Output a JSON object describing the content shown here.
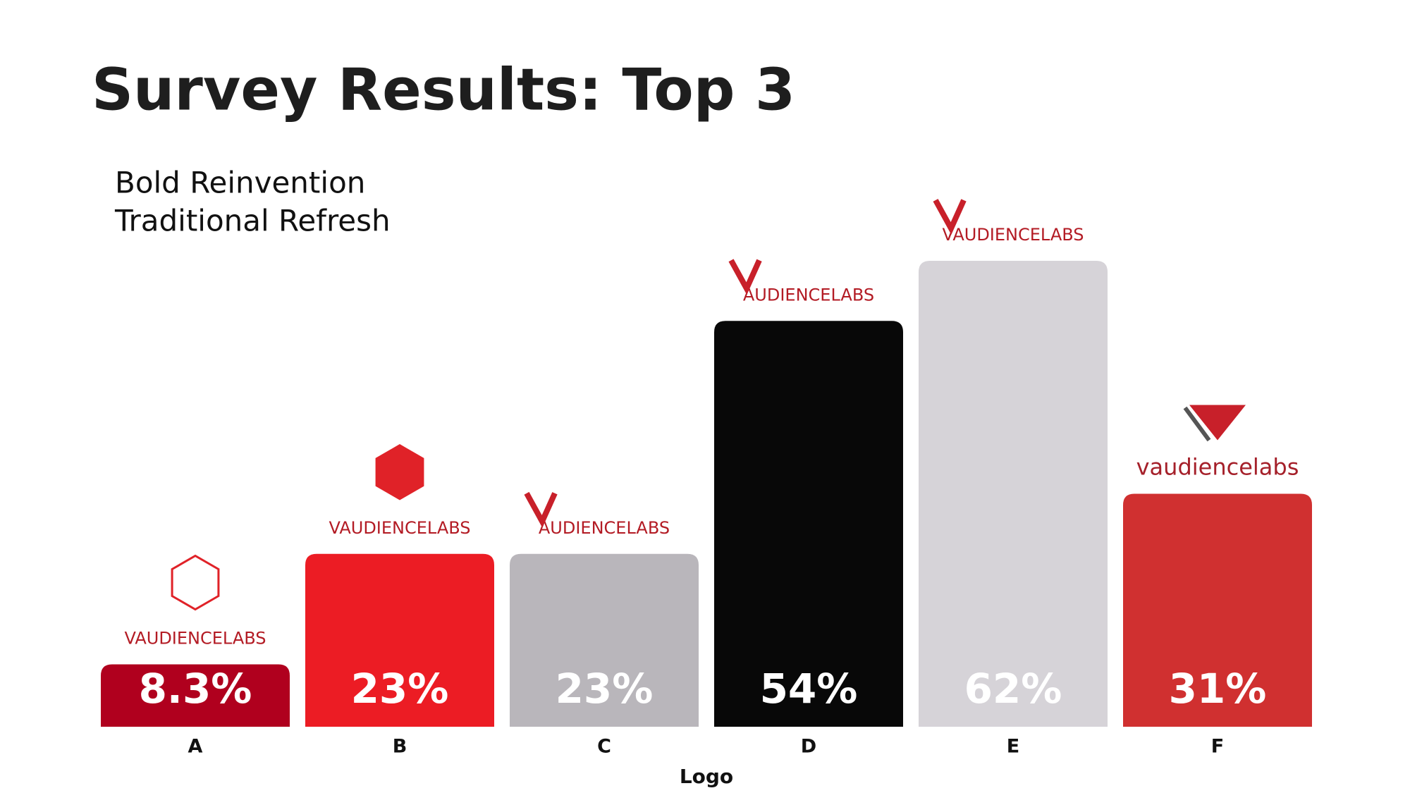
{
  "chart_data": {
    "type": "bar",
    "title": "Survey Results: Top 3",
    "legend": [
      "Bold Reinvention",
      "Traditional Refresh"
    ],
    "x_label": "Logo",
    "categories": [
      "A",
      "B",
      "C",
      "D",
      "E",
      "F"
    ],
    "values": [
      8.3,
      23,
      23,
      54,
      62,
      31
    ],
    "value_labels": [
      "8.3%",
      "23%",
      "23%",
      "54%",
      "62%",
      "31%"
    ],
    "colors": [
      "#b0001e",
      "#ec1c24",
      "#b9b6bb",
      "#080808",
      "#d6d3d8",
      "#d03030"
    ],
    "logo_texts": [
      "VAUDIENCELABS",
      "VAUDIENCELABS",
      "AUDIENCELABS",
      "AUDIENCELABS",
      "VAUDIENCELABS",
      "vaudiencelabs"
    ]
  }
}
